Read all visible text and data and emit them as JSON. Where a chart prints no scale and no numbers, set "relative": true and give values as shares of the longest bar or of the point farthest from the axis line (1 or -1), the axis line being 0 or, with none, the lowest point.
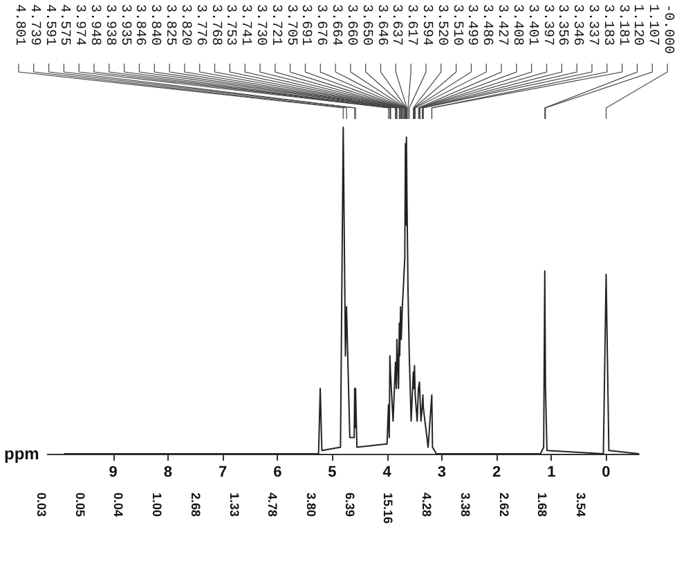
{
  "chart_data": {
    "type": "line",
    "relative": true,
    "xlabel": "ppm",
    "xlim": [
      10.2,
      -0.6
    ],
    "xticks": [
      9,
      8,
      7,
      6,
      5,
      4,
      3,
      2,
      1,
      0
    ],
    "grid": false,
    "x": [
      9.9,
      5.25,
      5.22,
      5.19,
      4.85,
      4.8,
      4.76,
      4.74,
      4.68,
      4.6,
      4.591,
      4.583,
      4.575,
      4.55,
      4.0,
      3.974,
      3.96,
      3.948,
      3.938,
      3.89,
      3.846,
      3.83,
      3.82,
      3.79,
      3.776,
      3.768,
      3.753,
      3.741,
      3.73,
      3.721,
      3.705,
      3.691,
      3.676,
      3.664,
      3.655,
      3.646,
      3.637,
      3.617,
      3.594,
      3.56,
      3.52,
      3.51,
      3.499,
      3.486,
      3.45,
      3.427,
      3.408,
      3.4,
      3.38,
      3.356,
      3.346,
      3.337,
      3.25,
      3.183,
      3.17,
      3.1,
      1.2,
      1.14,
      1.12,
      1.107,
      1.08,
      0.05,
      0.0,
      -0.05,
      -0.6
    ],
    "series": [
      {
        "color": "#222222",
        "values": [
          0,
          0,
          0.2,
          0.01,
          0.02,
          1.0,
          0.3,
          0.45,
          0.05,
          0.05,
          0.2,
          0.08,
          0.2,
          0.02,
          0.03,
          0.15,
          0.05,
          0.3,
          0.25,
          0.1,
          0.28,
          0.2,
          0.35,
          0.2,
          0.4,
          0.3,
          0.45,
          0.35,
          0.4,
          0.45,
          0.5,
          0.55,
          0.6,
          0.95,
          0.7,
          0.97,
          0.8,
          0.5,
          0.3,
          0.1,
          0.25,
          0.2,
          0.27,
          0.18,
          0.1,
          0.2,
          0.22,
          0.18,
          0.1,
          0.15,
          0.18,
          0.14,
          0.02,
          0.18,
          0.02,
          0,
          0,
          0.02,
          0.56,
          0.2,
          0.01,
          0,
          0.55,
          0.01,
          0
        ]
      }
    ],
    "annotations": [
      "4.801",
      "4.739",
      "4.591",
      "4.575",
      "3.974",
      "3.948",
      "3.938",
      "3.935",
      "3.846",
      "3.840",
      "3.825",
      "3.820",
      "3.776",
      "3.768",
      "3.753",
      "3.741",
      "3.730",
      "3.721",
      "3.705",
      "3.691",
      "3.676",
      "3.664",
      "3.660",
      "3.650",
      "3.646",
      "3.637",
      "3.617",
      "3.594",
      "3.520",
      "3.510",
      "3.499",
      "3.486",
      "3.427",
      "3.408",
      "3.401",
      "3.397",
      "3.356",
      "3.346",
      "3.337",
      "3.183",
      "3.181",
      "1.120",
      "1.107",
      "-0.000",
      "0.03",
      "0.05",
      "0.04",
      "1.00",
      "2.68",
      "1.33",
      "4.78",
      "3.80",
      "6.39",
      "15.16",
      "4.28",
      "3.38",
      "2.62",
      "1.68",
      "3.54"
    ]
  }
}
